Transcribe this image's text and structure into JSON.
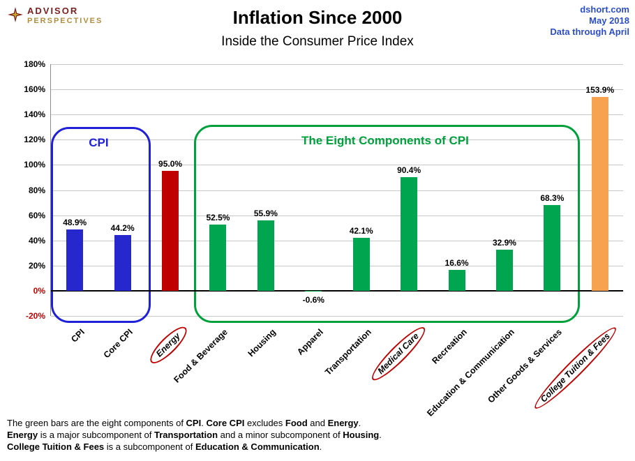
{
  "header": {
    "logo": {
      "line1": "ADVISOR",
      "line2": "PERSPECTIVES"
    },
    "title": "Inflation Since 2000",
    "subtitle": "Inside the Consumer Price Index",
    "source": [
      "dshort.com",
      "May 2018",
      "Data through April"
    ]
  },
  "colors": {
    "source_text": "#2B4EC8",
    "logo_advisor": "#7A1E1E",
    "logo_perspectives": "#B08D3F",
    "cpi_blue": "#2727CE",
    "energy_red": "#C00000",
    "component_green": "#00A550",
    "tuition_orange": "#F7A24E",
    "circle_red": "#C00000"
  },
  "chart_data": {
    "type": "bar",
    "title": "Inflation Since 2000",
    "subtitle": "Inside the Consumer Price Index",
    "xlabel": "",
    "ylabel": "",
    "ylim": [
      -20,
      180
    ],
    "ytick_step": 20,
    "ytick_suffix": "%",
    "grid": true,
    "legend": "none",
    "categories": [
      "CPI",
      "Core CPI",
      "Energy",
      "Food & Beverage",
      "Housing",
      "Apparel",
      "Transportation",
      "Medical Care",
      "Recreation",
      "Education & Communication",
      "Other Goods & Services",
      "College Tuition & Fees"
    ],
    "values": [
      48.9,
      44.2,
      95.0,
      52.5,
      55.9,
      -0.6,
      42.1,
      90.4,
      16.6,
      32.9,
      68.3,
      153.9
    ],
    "value_labels": [
      "48.9%",
      "44.2%",
      "95.0%",
      "52.5%",
      "55.9%",
      "-0.6%",
      "42.1%",
      "90.4%",
      "16.6%",
      "32.9%",
      "68.3%",
      "153.9%"
    ],
    "bar_colors": [
      "#2727CE",
      "#2727CE",
      "#C00000",
      "#00A550",
      "#00A550",
      "#00A550",
      "#00A550",
      "#00A550",
      "#00A550",
      "#00A550",
      "#00A550",
      "#F7A24E"
    ],
    "circled_categories": [
      false,
      false,
      true,
      false,
      false,
      false,
      false,
      true,
      false,
      false,
      false,
      true
    ],
    "circle_color": "#C00000",
    "negative_tick_color": "#C00000",
    "gridline_color": "#C9C9C9",
    "zero_line_color": "#000000",
    "annotations": [
      {
        "label": "CPI",
        "color": "#2020D8",
        "from_bar": 0,
        "to_bar": 1,
        "top_value": 130
      },
      {
        "label": "The Eight Components of CPI",
        "color": "#00A03C",
        "from_bar": 3,
        "to_bar": 10,
        "top_value": 132
      }
    ]
  },
  "footer": {
    "lines": [
      [
        {
          "t": "The green bars are the eight components of "
        },
        {
          "t": "CPI",
          "b": true
        },
        {
          "t": ". "
        },
        {
          "t": "Core CPI",
          "b": true
        },
        {
          "t": " excludes "
        },
        {
          "t": "Food",
          "b": true
        },
        {
          "t": " and "
        },
        {
          "t": "Energy",
          "b": true
        },
        {
          "t": "."
        }
      ],
      [
        {
          "t": "Energy",
          "b": true
        },
        {
          "t": " is a major subcomponent of "
        },
        {
          "t": "Transportation",
          "b": true
        },
        {
          "t": " and a minor subcomponent of "
        },
        {
          "t": "Housing",
          "b": true
        },
        {
          "t": "."
        }
      ],
      [
        {
          "t": "College Tuition & Fees",
          "b": true
        },
        {
          "t": " is a subcomponent of "
        },
        {
          "t": "Education & Communication",
          "b": true
        },
        {
          "t": "."
        }
      ]
    ]
  }
}
